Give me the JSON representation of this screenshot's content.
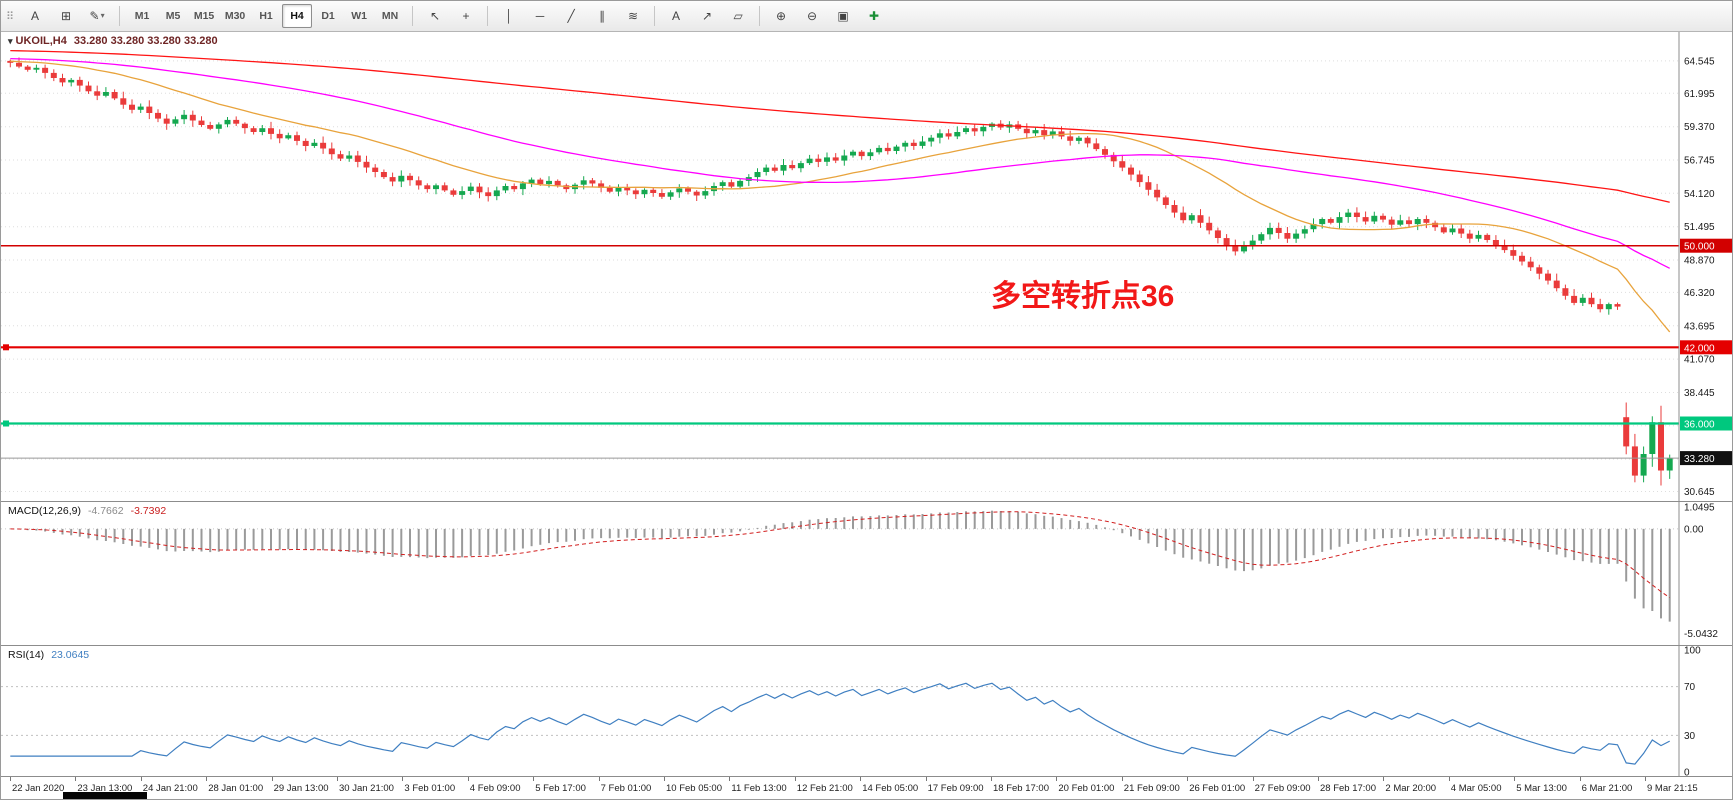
{
  "toolbar": {
    "grip_glyph": "⠿",
    "left_icons": [
      {
        "name": "annotate-text-button",
        "glyph": "A"
      },
      {
        "name": "grid-toggle-button",
        "glyph": "⊞"
      },
      {
        "name": "draw-tools-button",
        "glyph": "✎",
        "dropdown": "▾"
      }
    ],
    "timeframes": [
      {
        "label": "M1"
      },
      {
        "label": "M5"
      },
      {
        "label": "M15"
      },
      {
        "label": "M30"
      },
      {
        "label": "H1"
      },
      {
        "label": "H4",
        "active": true
      },
      {
        "label": "D1"
      },
      {
        "label": "W1"
      },
      {
        "label": "MN"
      }
    ],
    "right_icons": [
      {
        "name": "cursor-button",
        "glyph": "↖"
      },
      {
        "name": "crosshair-button",
        "glyph": "+"
      },
      {
        "type": "sep"
      },
      {
        "name": "vertical-line-button",
        "glyph": "│"
      },
      {
        "name": "horizontal-line-button",
        "glyph": "─"
      },
      {
        "name": "trendline-button",
        "glyph": "╱"
      },
      {
        "name": "channel-button",
        "glyph": "∥"
      },
      {
        "name": "fibonacci-button",
        "glyph": "≋"
      },
      {
        "type": "sep"
      },
      {
        "name": "text-button",
        "glyph": "A"
      },
      {
        "name": "arrow-button",
        "glyph": "↗"
      },
      {
        "name": "shapes-button",
        "glyph": "▱"
      },
      {
        "type": "sep"
      },
      {
        "name": "zoom-in-button",
        "glyph": "⊕"
      },
      {
        "name": "zoom-out-button",
        "glyph": "⊖"
      },
      {
        "name": "tile-windows-button",
        "glyph": "▣"
      },
      {
        "name": "new-order-button",
        "glyph": "✚",
        "color": "#1a8f36"
      }
    ]
  },
  "chart_data": {
    "type": "candlestick",
    "symbol": "UKOIL",
    "timeframe": "H4",
    "title": {
      "dropdown_glyph": "▾",
      "symbol_tf": "UKOIL,H4",
      "ohlc": "33.280 33.280 33.280 33.280"
    },
    "annotation": {
      "text": "多空转折点36",
      "color": "#f21818"
    },
    "closes": [
      64.4,
      64.1,
      63.85,
      64.0,
      63.6,
      63.2,
      62.85,
      63.05,
      62.6,
      62.15,
      61.8,
      62.1,
      61.6,
      61.1,
      60.7,
      60.95,
      60.45,
      60.0,
      59.6,
      59.95,
      60.3,
      59.85,
      59.5,
      59.2,
      59.55,
      59.9,
      59.6,
      59.25,
      58.95,
      59.25,
      58.8,
      58.45,
      58.7,
      58.25,
      57.85,
      58.1,
      57.65,
      57.2,
      56.85,
      57.1,
      56.6,
      56.15,
      55.8,
      55.4,
      55.05,
      55.5,
      55.15,
      54.75,
      54.45,
      54.75,
      54.35,
      54.0,
      54.3,
      54.65,
      54.2,
      53.9,
      54.35,
      54.7,
      54.45,
      54.9,
      55.2,
      54.85,
      55.1,
      54.75,
      54.45,
      54.8,
      55.15,
      54.9,
      54.55,
      54.25,
      54.6,
      54.35,
      54.05,
      54.4,
      54.15,
      53.85,
      54.2,
      54.5,
      54.25,
      53.95,
      54.3,
      54.7,
      55.0,
      54.65,
      55.1,
      55.4,
      55.8,
      56.15,
      55.9,
      56.35,
      56.1,
      56.5,
      56.85,
      56.6,
      56.95,
      56.7,
      57.1,
      57.4,
      57.05,
      57.35,
      57.7,
      57.45,
      57.8,
      58.1,
      57.85,
      58.2,
      58.5,
      58.85,
      58.6,
      58.95,
      59.25,
      59.0,
      59.35,
      59.6,
      59.3,
      59.55,
      59.2,
      58.85,
      59.1,
      58.7,
      59.0,
      58.6,
      58.25,
      58.5,
      58.05,
      57.6,
      57.15,
      56.65,
      56.15,
      55.6,
      55.0,
      54.4,
      53.8,
      53.2,
      52.6,
      52.0,
      52.4,
      51.8,
      51.2,
      50.6,
      50.05,
      49.55,
      49.95,
      50.4,
      50.9,
      51.4,
      51.0,
      50.55,
      50.95,
      51.3,
      51.7,
      52.1,
      51.8,
      52.25,
      52.6,
      52.25,
      51.9,
      52.35,
      52.05,
      51.65,
      52.0,
      51.7,
      52.1,
      51.8,
      51.45,
      51.05,
      51.35,
      50.95,
      50.55,
      50.85,
      50.45,
      50.05,
      49.65,
      49.2,
      48.75,
      48.3,
      47.8,
      47.25,
      46.65,
      46.05,
      45.5,
      45.9,
      45.4,
      45.0,
      45.4,
      45.2,
      34.2,
      31.9,
      33.6,
      36.1,
      32.3,
      33.28
    ],
    "open_overrides": {
      "0": 64.55,
      "186": 36.5
    },
    "y_axis": {
      "min": 29.9,
      "max": 66.9,
      "ticks": [
        "64.545",
        "61.995",
        "59.370",
        "56.745",
        "54.120",
        "51.495",
        "48.870",
        "46.320",
        "43.695",
        "41.070",
        "38.445",
        "35.820",
        "33.195",
        "30.645"
      ]
    },
    "x_axis_labels": [
      "22 Jan 2020",
      "23 Jan 13:00",
      "24 Jan 21:00",
      "28 Jan 01:00",
      "29 Jan 13:00",
      "30 Jan 21:00",
      "3 Feb 01:00",
      "4 Feb 09:00",
      "5 Feb 17:00",
      "7 Feb 01:00",
      "10 Feb 05:00",
      "11 Feb 13:00",
      "12 Feb 21:00",
      "14 Feb 05:00",
      "17 Feb 09:00",
      "18 Feb 17:00",
      "20 Feb 01:00",
      "21 Feb 09:00",
      "26 Feb 01:00",
      "27 Feb 09:00",
      "28 Feb 17:00",
      "2 Mar 20:00",
      "4 Mar 05:00",
      "5 Mar 13:00",
      "6 Mar 21:00",
      "9 Mar 21:15"
    ],
    "moving_averages": [
      {
        "name": "fast-ma",
        "period": 21,
        "color": "#e8a33c"
      },
      {
        "name": "medium-ma",
        "period": 55,
        "color": "#ff00ff"
      },
      {
        "name": "slow-ma",
        "period": 160,
        "color": "#ff1414"
      }
    ],
    "hlines": [
      {
        "value": 50.0,
        "label": "50.000",
        "color": "#d20000",
        "width": 1.5,
        "handle": false
      },
      {
        "value": 42.0,
        "label": "42.000",
        "color": "#e40000",
        "width": 2.2,
        "handle": true
      },
      {
        "value": 36.0,
        "label": "36.000",
        "color": "#00c87e",
        "width": 2.2,
        "handle": true
      }
    ],
    "current_price": {
      "value": 33.28,
      "label": "33.280",
      "line_color": "#999999",
      "tag_bg": "#111111"
    },
    "macd": {
      "label": "MACD(12,26,9)",
      "main_value": "-4.7662",
      "signal_value": "-3.7392",
      "fast": 12,
      "slow": 26,
      "signal": 9,
      "axis": [
        "1.0495",
        "0.00",
        "-5.0432"
      ]
    },
    "rsi": {
      "label": "RSI(14)",
      "value": "23.0645",
      "period": 14,
      "levels": [
        70,
        30
      ],
      "axis": [
        "100",
        "70",
        "30",
        "0"
      ]
    },
    "colors": {
      "bull": "#15a850",
      "bear": "#ea3b3b",
      "grid": "#dedede",
      "macd_hist": "#9a9a9a",
      "macd_signal": "#d22020",
      "rsi_line": "#3f7fc1",
      "rsi_levels": "#c0c0c0"
    }
  }
}
